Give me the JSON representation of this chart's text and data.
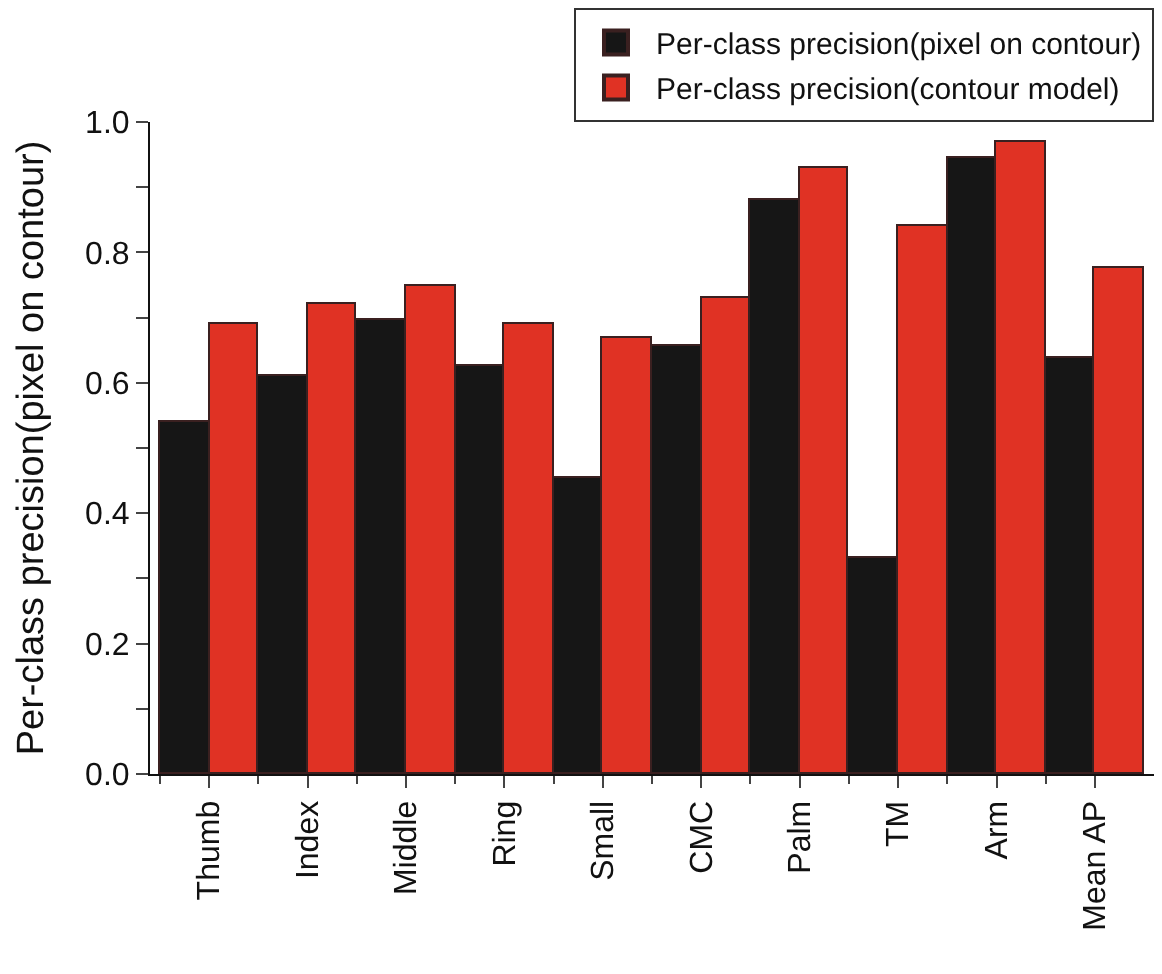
{
  "chart_data": {
    "type": "bar",
    "ylabel": "Per-class precision(pixel on contour)",
    "categories": [
      "Thumb",
      "Index",
      "Middle",
      "Ring",
      "Small",
      "CMC",
      "Palm",
      "TM",
      "Arm",
      "Mean AP"
    ],
    "series": [
      {
        "name": "Per-class precision(pixel on contour)",
        "color": "#161616",
        "values": [
          0.54,
          0.61,
          0.695,
          0.627,
          0.455,
          0.655,
          0.88,
          0.33,
          0.945,
          0.637
        ]
      },
      {
        "name": "Per-class precision(contour model)",
        "color": "#e03224",
        "values": [
          0.69,
          0.72,
          0.75,
          0.69,
          0.67,
          0.73,
          0.93,
          0.84,
          0.97,
          0.776
        ]
      }
    ],
    "ylim": [
      0,
      1.0
    ],
    "yticks": [
      {
        "value": 0,
        "label": "0.0"
      },
      {
        "value": 0.1,
        "label": null
      },
      {
        "value": 0.2,
        "label": "0.2"
      },
      {
        "value": 0.3,
        "label": null
      },
      {
        "value": 0.4,
        "label": "0.4"
      },
      {
        "value": 0.5,
        "label": null
      },
      {
        "value": 0.6,
        "label": "0.6"
      },
      {
        "value": 0.7,
        "label": null
      },
      {
        "value": 0.8,
        "label": "0.8"
      },
      {
        "value": 0.9,
        "label": null
      },
      {
        "value": 1.0,
        "label": "1.0"
      }
    ],
    "legend": "top right"
  }
}
